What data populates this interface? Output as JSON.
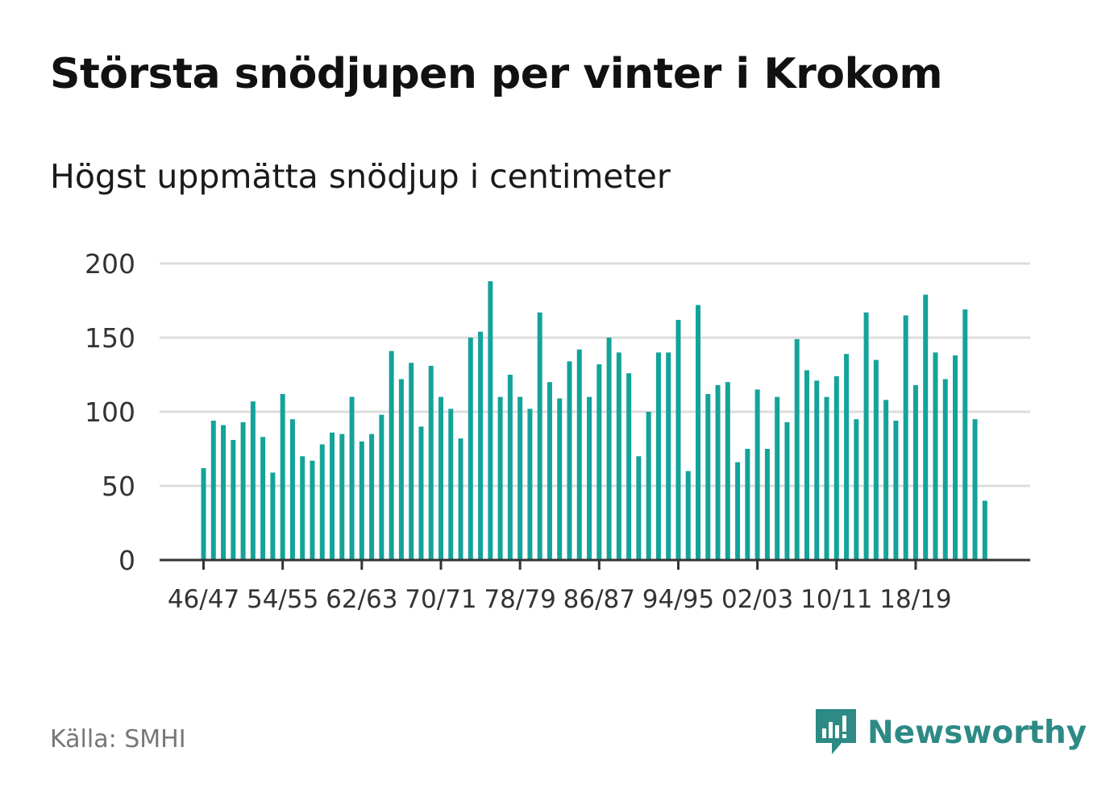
{
  "header": {
    "title": "Största snödjupen per vinter i Krokom",
    "subtitle": "Högst uppmätta snödjup i centimeter"
  },
  "footer": {
    "source": "Källa: SMHI",
    "brand": "Newsworthy"
  },
  "colors": {
    "bar": "#14a39a",
    "grid": "#dddddd",
    "axis": "#333333",
    "brand": "#2d8a85"
  },
  "chart_data": {
    "type": "bar",
    "title": "Största snödjupen per vinter i Krokom",
    "subtitle": "Högst uppmätta snödjup i centimeter",
    "ylim": [
      0,
      200
    ],
    "yticks": [
      0,
      50,
      100,
      150,
      200
    ],
    "grid": true,
    "xtick_labels": [
      "46/47",
      "54/55",
      "62/63",
      "70/71",
      "78/79",
      "86/87",
      "94/95",
      "02/03",
      "10/11",
      "18/19"
    ],
    "xtick_indices": [
      0,
      8,
      16,
      24,
      32,
      40,
      48,
      56,
      64,
      72
    ],
    "categories": [
      "1946/47",
      "1947/48",
      "1948/49",
      "1949/50",
      "1950/51",
      "1951/52",
      "1952/53",
      "1953/54",
      "1954/55",
      "1955/56",
      "1956/57",
      "1957/58",
      "1958/59",
      "1959/60",
      "1960/61",
      "1961/62",
      "1962/63",
      "1963/64",
      "1964/65",
      "1965/66",
      "1966/67",
      "1967/68",
      "1968/69",
      "1969/70",
      "1970/71",
      "1971/72",
      "1972/73",
      "1973/74",
      "1974/75",
      "1975/76",
      "1976/77",
      "1977/78",
      "1978/79",
      "1979/80",
      "1980/81",
      "1981/82",
      "1982/83",
      "1983/84",
      "1984/85",
      "1985/86",
      "1986/87",
      "1987/88",
      "1988/89",
      "1989/90",
      "1990/91",
      "1991/92",
      "1992/93",
      "1993/94",
      "1994/95",
      "1995/96",
      "1996/97",
      "1997/98",
      "1998/99",
      "1999/00",
      "2000/01",
      "2001/02",
      "2002/03",
      "2003/04",
      "2004/05",
      "2005/06",
      "2006/07",
      "2007/08",
      "2008/09",
      "2009/10",
      "2010/11",
      "2011/12",
      "2012/13",
      "2013/14",
      "2014/15",
      "2015/16",
      "2016/17",
      "2017/18",
      "2018/19",
      "2019/20",
      "2020/21",
      "2021/22",
      "2022/23",
      "2023/24",
      "2024/25",
      "2025/26"
    ],
    "values": [
      62,
      94,
      91,
      81,
      93,
      107,
      83,
      59,
      112,
      95,
      70,
      67,
      78,
      86,
      85,
      110,
      80,
      85,
      98,
      141,
      122,
      133,
      90,
      131,
      110,
      102,
      82,
      150,
      154,
      188,
      110,
      125,
      110,
      102,
      167,
      120,
      109,
      134,
      142,
      110,
      132,
      150,
      140,
      126,
      70,
      100,
      140,
      140,
      162,
      60,
      172,
      112,
      118,
      120,
      66,
      75,
      115,
      75,
      110,
      93,
      149,
      128,
      121,
      110,
      124,
      139,
      95,
      167,
      135,
      108,
      94,
      165,
      118,
      179,
      140,
      122,
      138,
      169,
      95,
      40
    ]
  }
}
